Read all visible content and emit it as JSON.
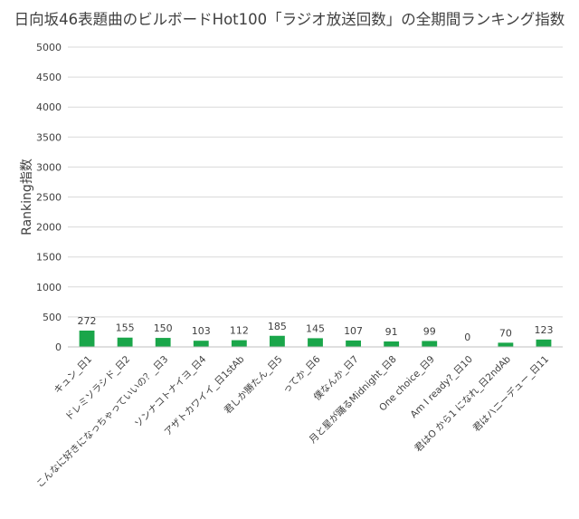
{
  "chart_data": {
    "type": "bar",
    "title": "日向坂46表題曲のビルボードHot100「ラジオ放送回数」の全期間ランキング指数",
    "ylabel": "Ranking指数",
    "xlabel": "",
    "ylim": [
      0,
      5000
    ],
    "yticks": [
      0,
      500,
      1000,
      1500,
      2000,
      2500,
      3000,
      3500,
      4000,
      4500,
      5000
    ],
    "grid": true,
    "legend": "none",
    "bar_color": "#1aa64a",
    "categories": [
      "キュン_日1",
      "ドレミソラシド_日2",
      "こんなに好きになっちゃっていいの？_日3",
      "ソンナコトナイヨ_日4",
      "アザトカワイイ_日1stAb",
      "君しか勝たん_日5",
      "ってか_日6",
      "僕なんか_日7",
      "月と星が踊るMidnight_日8",
      "One choice_日9",
      "Am I ready?_日10",
      "君はO から1 になれ_日2ndAb",
      "君はハニーデュー_日11"
    ],
    "values": [
      272,
      155,
      150,
      103,
      112,
      185,
      145,
      107,
      91,
      99,
      0,
      70,
      123
    ],
    "data_labels": [
      "272",
      "155",
      "150",
      "103",
      "112",
      "185",
      "145",
      "107",
      "91",
      "99",
      "0",
      "70",
      "123"
    ]
  }
}
